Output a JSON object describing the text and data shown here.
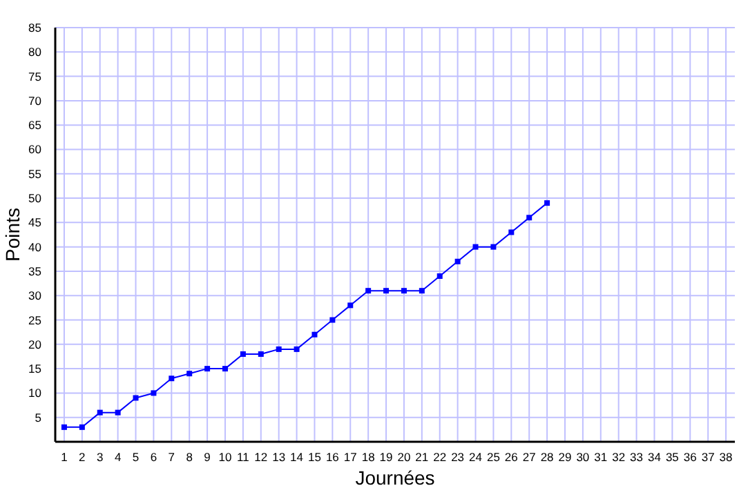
{
  "chart_data": {
    "type": "line",
    "xlabel": "Journées",
    "ylabel": "Points",
    "x": [
      1,
      2,
      3,
      4,
      5,
      6,
      7,
      8,
      9,
      10,
      11,
      12,
      13,
      14,
      15,
      16,
      17,
      18,
      19,
      20,
      21,
      22,
      23,
      24,
      25,
      26,
      27,
      28
    ],
    "series": [
      {
        "color": "#0000ff",
        "values": [
          3,
          3,
          6,
          6,
          9,
          10,
          13,
          14,
          15,
          15,
          18,
          18,
          19,
          19,
          22,
          25,
          28,
          31,
          31,
          31,
          31,
          34,
          37,
          40,
          40,
          43,
          46,
          49
        ]
      }
    ],
    "xlim": [
      0.5,
      38.5
    ],
    "xticks": [
      1,
      2,
      3,
      4,
      5,
      6,
      7,
      8,
      9,
      10,
      11,
      12,
      13,
      14,
      15,
      16,
      17,
      18,
      19,
      20,
      21,
      22,
      23,
      24,
      25,
      26,
      27,
      28,
      29,
      30,
      31,
      32,
      33,
      34,
      35,
      36,
      37,
      38
    ],
    "ylim": [
      0,
      85
    ],
    "yticks": [
      5,
      10,
      15,
      20,
      25,
      30,
      35,
      40,
      45,
      50,
      55,
      60,
      65,
      70,
      75,
      80,
      85
    ],
    "grid": true,
    "marker": "square",
    "line_style": "solid"
  }
}
